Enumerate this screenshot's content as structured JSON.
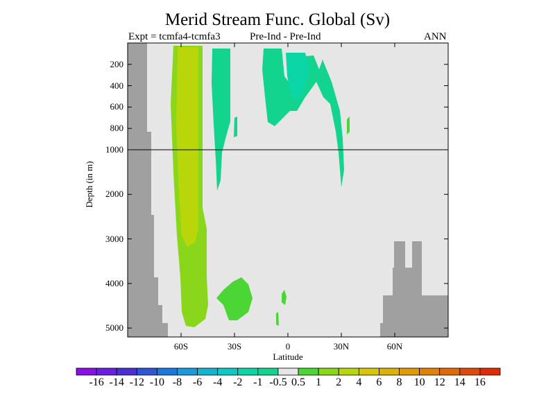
{
  "chart_data": {
    "type": "heatmap",
    "title": "Merid Stream Func. Global (Sv)",
    "left_string": "Expt = tcmfa4-tcmfa3",
    "center_string": "Pre-Ind - Pre-Ind",
    "right_string": "ANN",
    "xlabel": "Latitude",
    "ylabel": "Depth (in m)",
    "xlim": [
      -90,
      90
    ],
    "ylim_depth": [
      0,
      5200
    ],
    "y_scale": "piecewise: linear 0-1000 m (upper panel), linear 1000-5200 m (lower panel)",
    "x_ticks": [
      {
        "value": -60,
        "label": "60S"
      },
      {
        "value": -30,
        "label": "30S"
      },
      {
        "value": 0,
        "label": "0"
      },
      {
        "value": 30,
        "label": "30N"
      },
      {
        "value": 60,
        "label": "60N"
      }
    ],
    "y_ticks": [
      {
        "value": 200,
        "label": "200"
      },
      {
        "value": 400,
        "label": "400"
      },
      {
        "value": 600,
        "label": "600"
      },
      {
        "value": 800,
        "label": "800"
      },
      {
        "value": 1000,
        "label": "1000"
      },
      {
        "value": 2000,
        "label": "2000"
      },
      {
        "value": 3000,
        "label": "3000"
      },
      {
        "value": 4000,
        "label": "4000"
      },
      {
        "value": 5000,
        "label": "5000"
      }
    ],
    "grid": false,
    "legend": "horizontal colorbar bottom",
    "colorbar": {
      "labels": [
        "-16",
        "-14",
        "-12",
        "-10",
        "-8",
        "-6",
        "-4",
        "-2",
        "-1",
        "-0.5",
        "0.5",
        "1",
        "2",
        "4",
        "6",
        "8",
        "10",
        "12",
        "14",
        "16"
      ],
      "colors": [
        "#8a10e6",
        "#6b1fe0",
        "#4a2fd8",
        "#2e55d8",
        "#1b78dc",
        "#1a9ad8",
        "#14b4d0",
        "#0cc9c6",
        "#0ad6a8",
        "#12d48e",
        "#e6e6e6",
        "#4cd636",
        "#8ad61a",
        "#b8d60a",
        "#d6c808",
        "#dcb208",
        "#e09a08",
        "#e08208",
        "#e06a08",
        "#e04a08",
        "#e02a08"
      ]
    },
    "background_color": "#e6e6e6",
    "land_color": "#a0a0a0",
    "regions": [
      {
        "name": "southern-ocean-positive-cell",
        "value_class": "1 to 2",
        "lat_range": [
          -68,
          -52
        ],
        "depth_range": [
          50,
          5000
        ]
      },
      {
        "name": "southern-ocean-core",
        "value_class": "2 to 4",
        "lat_range": [
          -64,
          -55
        ],
        "depth_range": [
          50,
          3000
        ]
      },
      {
        "name": "midlat-south-negative",
        "value_class": "-1 to -0.5",
        "lat_range": [
          -43,
          -33
        ],
        "depth_range": [
          50,
          2200
        ]
      },
      {
        "name": "tropical-negative-cell",
        "value_class": "-1 to -0.5",
        "lat_range": [
          -14,
          33
        ],
        "depth_range": [
          50,
          1700
        ]
      },
      {
        "name": "tropical-negative-core",
        "value_class": "-2 to -1",
        "lat_range": [
          -5,
          6
        ],
        "depth_range": [
          80,
          500
        ]
      },
      {
        "name": "deep-south-positive",
        "value_class": "0.5 to 1",
        "lat_range": [
          -40,
          -20
        ],
        "depth_range": [
          3900,
          4700
        ]
      },
      {
        "name": "deep-equatorial-positive",
        "value_class": "0.5 to 1",
        "lat_range": [
          -6,
          -2
        ],
        "depth_range": [
          4100,
          5000
        ]
      },
      {
        "name": "north-atlantic-small",
        "value_class": "0.5 to 1",
        "lat_range": [
          33,
          35
        ],
        "depth_range": [
          650,
          850
        ]
      }
    ]
  }
}
